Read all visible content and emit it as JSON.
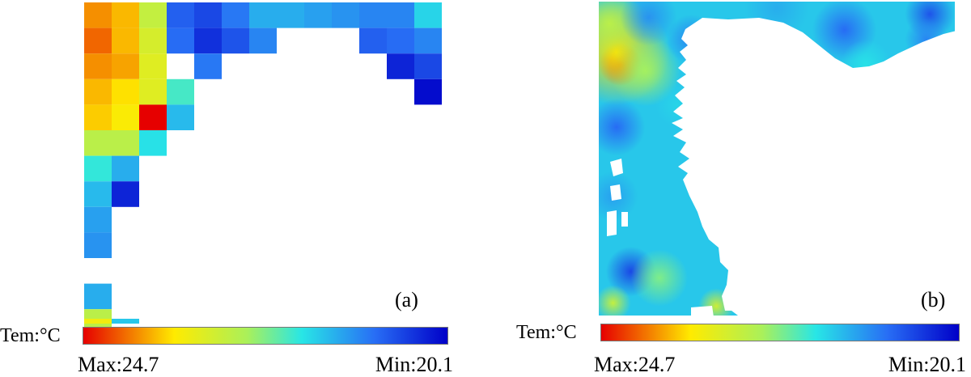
{
  "chart_data": [
    {
      "type": "heatmap",
      "panel_label": "(a)",
      "colorbar": {
        "title": "Tem:°C",
        "max_label": "Max:24.7",
        "min_label": "Min:20.1",
        "max": 24.7,
        "min": 20.1
      },
      "grid_columns": 13,
      "grid_rows": 13,
      "cells": [
        {
          "col": 0,
          "row": 0,
          "value": 24.0
        },
        {
          "col": 1,
          "row": 0,
          "value": 23.8
        },
        {
          "col": 2,
          "row": 0,
          "value": 22.9
        },
        {
          "col": 3,
          "row": 0,
          "value": 20.9
        },
        {
          "col": 4,
          "row": 0,
          "value": 20.7
        },
        {
          "col": 5,
          "row": 0,
          "value": 21.1
        },
        {
          "col": 6,
          "row": 0,
          "value": 21.5
        },
        {
          "col": 7,
          "row": 0,
          "value": 21.5
        },
        {
          "col": 8,
          "row": 0,
          "value": 21.4
        },
        {
          "col": 9,
          "row": 0,
          "value": 21.3
        },
        {
          "col": 10,
          "row": 0,
          "value": 21.2
        },
        {
          "col": 11,
          "row": 0,
          "value": 21.2
        },
        {
          "col": 12,
          "row": 0,
          "value": 21.8
        },
        {
          "col": 0,
          "row": 1,
          "value": 24.2
        },
        {
          "col": 1,
          "row": 1,
          "value": 23.8
        },
        {
          "col": 2,
          "row": 1,
          "value": 23.1
        },
        {
          "col": 3,
          "row": 1,
          "value": 21.0
        },
        {
          "col": 4,
          "row": 1,
          "value": 20.5
        },
        {
          "col": 5,
          "row": 1,
          "value": 20.8
        },
        {
          "col": 6,
          "row": 1,
          "value": 21.2
        },
        {
          "col": 10,
          "row": 1,
          "value": 20.9
        },
        {
          "col": 11,
          "row": 1,
          "value": 21.0
        },
        {
          "col": 12,
          "row": 1,
          "value": 21.2
        },
        {
          "col": 0,
          "row": 2,
          "value": 24.0
        },
        {
          "col": 1,
          "row": 2,
          "value": 23.9
        },
        {
          "col": 2,
          "row": 2,
          "value": 23.2
        },
        {
          "col": 4,
          "row": 2,
          "value": 21.1
        },
        {
          "col": 11,
          "row": 2,
          "value": 20.4
        },
        {
          "col": 12,
          "row": 2,
          "value": 20.7
        },
        {
          "col": 0,
          "row": 3,
          "value": 23.8
        },
        {
          "col": 1,
          "row": 3,
          "value": 23.6
        },
        {
          "col": 2,
          "row": 3,
          "value": 23.2
        },
        {
          "col": 3,
          "row": 3,
          "value": 22.1
        },
        {
          "col": 12,
          "row": 3,
          "value": 20.2
        },
        {
          "col": 0,
          "row": 4,
          "value": 23.7
        },
        {
          "col": 1,
          "row": 4,
          "value": 23.5
        },
        {
          "col": 2,
          "row": 4,
          "value": 24.7
        },
        {
          "col": 3,
          "row": 4,
          "value": 21.6
        },
        {
          "col": 0,
          "row": 5,
          "value": 22.8
        },
        {
          "col": 1,
          "row": 5,
          "value": 22.8
        },
        {
          "col": 2,
          "row": 5,
          "value": 21.9
        },
        {
          "col": 0,
          "row": 6,
          "value": 22.0
        },
        {
          "col": 1,
          "row": 6,
          "value": 21.5
        },
        {
          "col": 0,
          "row": 7,
          "value": 21.6
        },
        {
          "col": 1,
          "row": 7,
          "value": 20.4
        },
        {
          "col": 0,
          "row": 8,
          "value": 21.4
        },
        {
          "col": 0,
          "row": 9,
          "value": 21.3
        },
        {
          "col": 0,
          "row": 11,
          "value": 21.5
        },
        {
          "col": 0,
          "row": 12,
          "value": 22.8
        }
      ],
      "partial_cells": [
        {
          "col": 0,
          "value": 23.4
        },
        {
          "col": 1,
          "value": 21.7
        }
      ]
    },
    {
      "type": "heatmap",
      "panel_label": "(b)",
      "colorbar": {
        "title": "Tem:°C",
        "max_label": "Max:24.7",
        "min_label": "Min:20.1",
        "max": 24.7,
        "min": 20.1
      },
      "blobs": [
        {
          "u": 0.06,
          "v": 0.2,
          "value": 24.7,
          "r": 0.06
        },
        {
          "u": 0.05,
          "v": 0.16,
          "value": 23.6,
          "r": 0.15
        },
        {
          "u": 0.13,
          "v": 0.22,
          "value": 22.6,
          "r": 0.1
        },
        {
          "u": 0.03,
          "v": 0.07,
          "value": 22.8,
          "r": 0.1
        },
        {
          "u": 0.14,
          "v": 0.05,
          "value": 21.3,
          "r": 0.08
        },
        {
          "u": 0.05,
          "v": 0.4,
          "value": 21.0,
          "r": 0.08
        },
        {
          "u": 0.04,
          "v": 0.62,
          "value": 21.4,
          "r": 0.07
        },
        {
          "u": 0.09,
          "v": 0.86,
          "value": 20.7,
          "r": 0.07
        },
        {
          "u": 0.17,
          "v": 0.88,
          "value": 22.4,
          "r": 0.08
        },
        {
          "u": 0.04,
          "v": 0.96,
          "value": 22.9,
          "r": 0.05
        },
        {
          "u": 0.33,
          "v": 0.97,
          "value": 23.0,
          "r": 0.05
        },
        {
          "u": 0.22,
          "v": 0.33,
          "value": 21.8,
          "r": 0.06
        },
        {
          "u": 0.26,
          "v": 0.12,
          "value": 21.2,
          "r": 0.07
        },
        {
          "u": 0.5,
          "v": 0.02,
          "value": 21.5,
          "r": 0.09
        },
        {
          "u": 0.69,
          "v": 0.09,
          "value": 21.0,
          "r": 0.09
        },
        {
          "u": 0.75,
          "v": 0.2,
          "value": 21.9,
          "r": 0.07
        },
        {
          "u": 0.93,
          "v": 0.04,
          "value": 20.8,
          "r": 0.07
        },
        {
          "u": 0.92,
          "v": 0.12,
          "value": 21.2,
          "r": 0.06
        }
      ]
    }
  ]
}
